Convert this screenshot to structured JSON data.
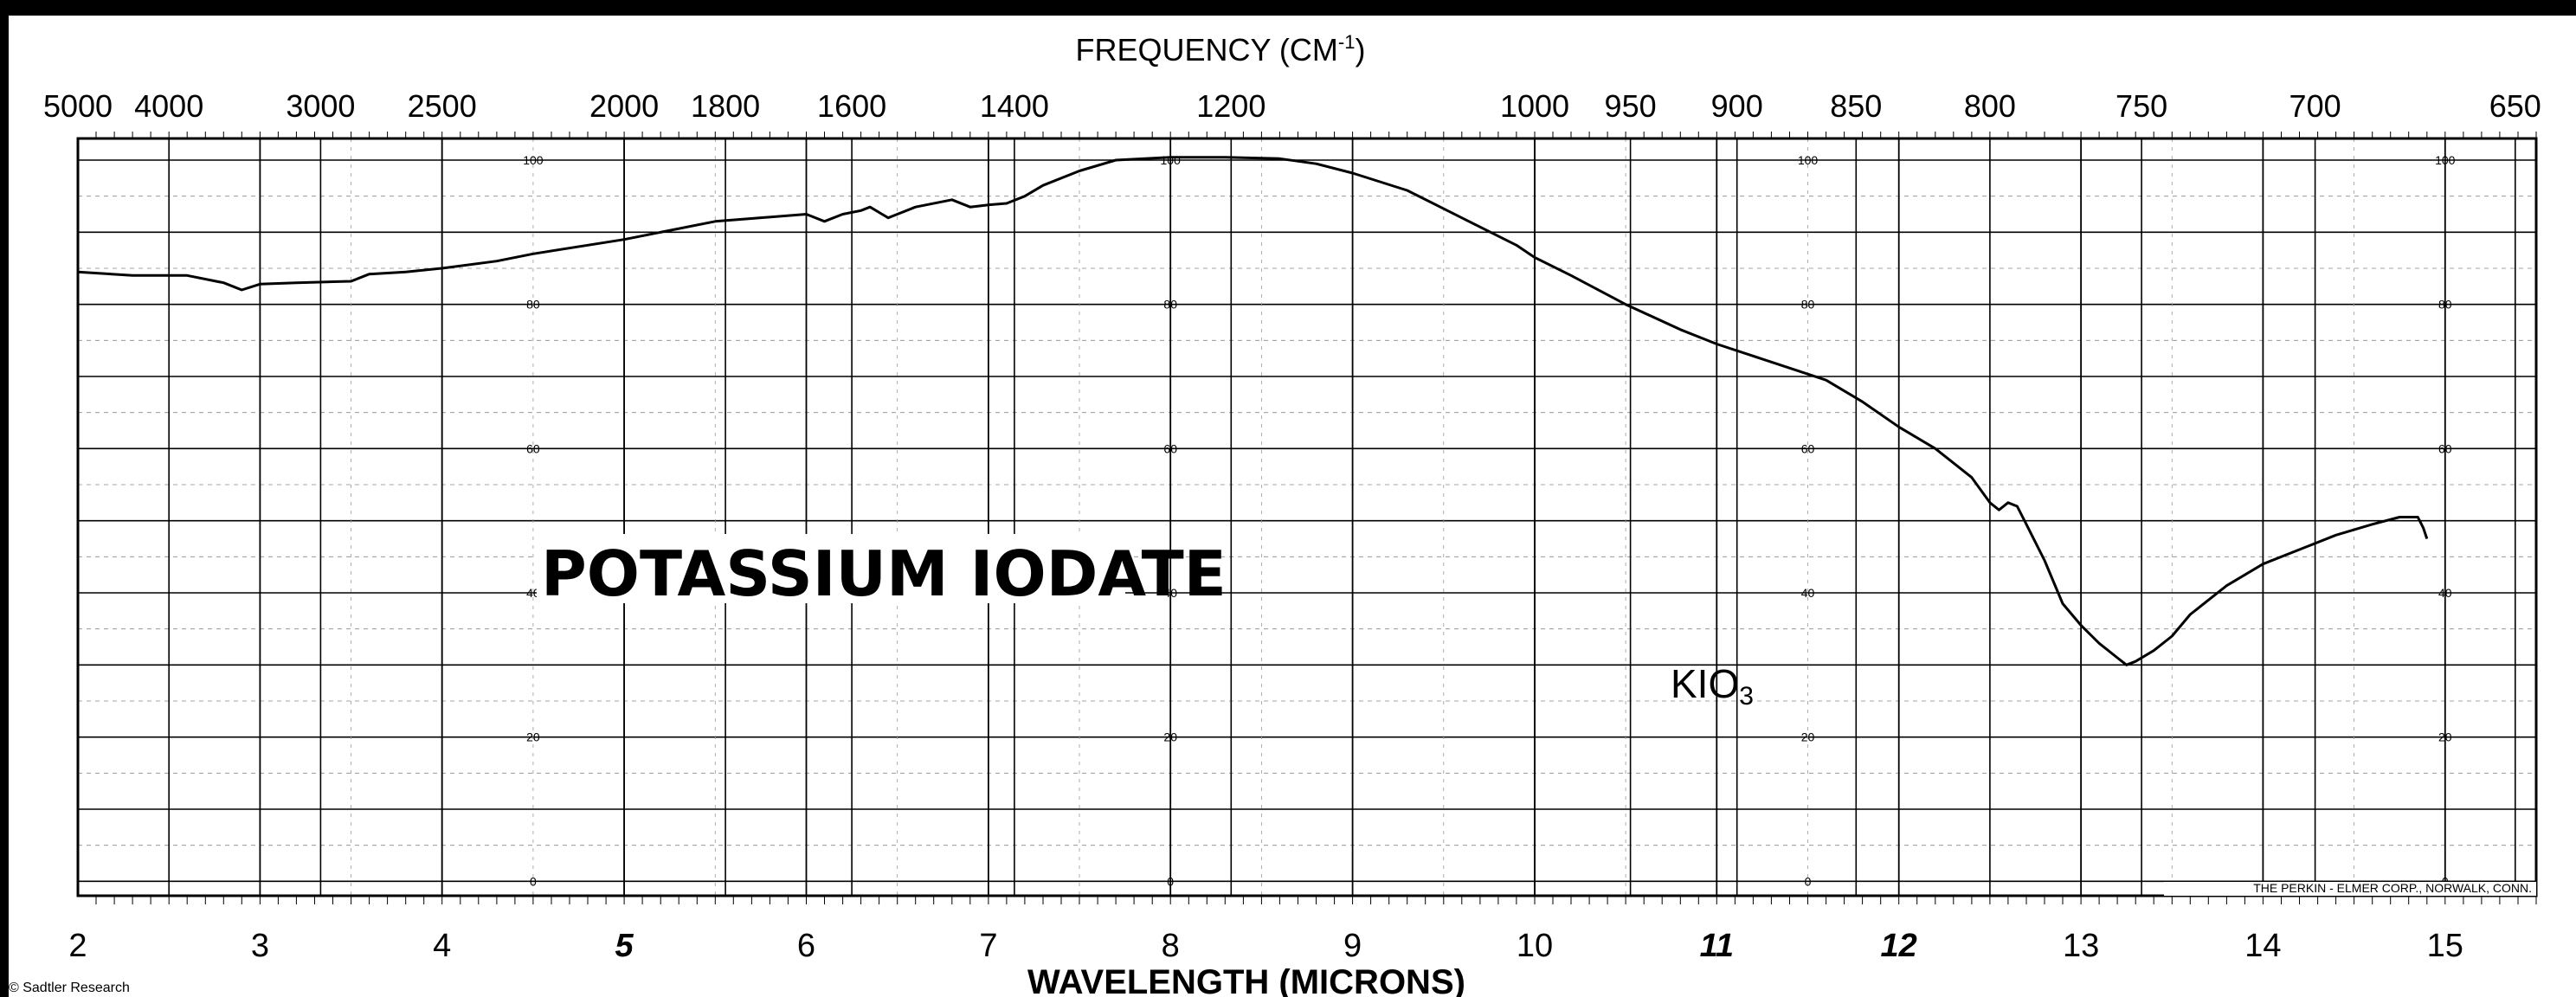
{
  "chart_data": {
    "type": "line",
    "title": "POTASSIUM IODATE",
    "formula": "KIO",
    "formula_subscript": "3",
    "xlabel": "WAVELENGTH (MICRONS)",
    "top_axis_label_main": "FREQUENCY (CM",
    "top_axis_label_exp": "-1",
    "top_axis_label_close": ")",
    "publisher": "THE PERKIN - ELMER CORP., NORWALK, CONN.",
    "copyright": "© Sadtler Research",
    "xlim": [
      2,
      15.5
    ],
    "ylim": [
      -2,
      103
    ],
    "grid": true,
    "x_ticks": [
      {
        "v": 2,
        "label": "2",
        "bold": false
      },
      {
        "v": 3,
        "label": "3",
        "bold": false
      },
      {
        "v": 4,
        "label": "4",
        "bold": false
      },
      {
        "v": 5,
        "label": "5",
        "bold": true
      },
      {
        "v": 6,
        "label": "6",
        "bold": false
      },
      {
        "v": 7,
        "label": "7",
        "bold": false
      },
      {
        "v": 8,
        "label": "8",
        "bold": false
      },
      {
        "v": 9,
        "label": "9",
        "bold": false
      },
      {
        "v": 10,
        "label": "10",
        "bold": false
      },
      {
        "v": 11,
        "label": "11",
        "bold": true
      },
      {
        "v": 12,
        "label": "12",
        "bold": true
      },
      {
        "v": 13,
        "label": "13",
        "bold": false
      },
      {
        "v": 14,
        "label": "14",
        "bold": false
      },
      {
        "v": 15,
        "label": "15",
        "bold": false
      }
    ],
    "top_ticks": [
      {
        "v": 2.0,
        "label": "5000"
      },
      {
        "v": 2.5,
        "label": "4000"
      },
      {
        "v": 3.333,
        "label": "3000"
      },
      {
        "v": 4.0,
        "label": "2500"
      },
      {
        "v": 5.0,
        "label": "2000"
      },
      {
        "v": 5.556,
        "label": "1800"
      },
      {
        "v": 6.25,
        "label": "1600"
      },
      {
        "v": 7.143,
        "label": "1400"
      },
      {
        "v": 8.333,
        "label": "1200"
      },
      {
        "v": 10.0,
        "label": "1000"
      },
      {
        "v": 10.526,
        "label": "950"
      },
      {
        "v": 11.111,
        "label": "900"
      },
      {
        "v": 11.765,
        "label": "850"
      },
      {
        "v": 12.5,
        "label": "800"
      },
      {
        "v": 13.333,
        "label": "750"
      },
      {
        "v": 14.286,
        "label": "700"
      },
      {
        "v": 15.385,
        "label": "650"
      }
    ],
    "inner_y_labels": [
      "0",
      "20",
      "40",
      "60",
      "80",
      "100"
    ],
    "inner_y_label_columns": [
      4.5,
      8.0,
      11.5,
      15.0
    ],
    "series": [
      {
        "x": [
          2.0,
          2.3,
          2.6,
          2.8,
          2.9,
          3.0,
          3.2,
          3.5,
          3.6,
          3.8,
          4.0,
          4.3,
          4.5,
          5.0,
          5.5,
          6.0,
          6.1,
          6.2,
          6.3,
          6.35,
          6.45,
          6.5,
          6.6,
          6.8,
          6.9,
          7.0,
          7.1,
          7.2,
          7.3,
          7.5,
          7.7,
          8.0,
          8.3,
          8.6,
          8.8,
          9.0,
          9.3,
          9.6,
          9.9,
          10.0,
          10.2,
          10.5,
          10.8,
          11.0,
          11.3,
          11.6,
          11.8,
          12.0,
          12.2,
          12.4,
          12.5,
          12.55,
          12.6,
          12.65,
          12.7,
          12.8,
          12.9,
          13.0,
          13.1,
          13.2,
          13.25,
          13.3,
          13.4,
          13.5,
          13.6,
          13.8,
          14.0,
          14.2,
          14.4,
          14.6,
          14.75,
          14.82,
          14.85,
          14.88,
          14.9
        ],
        "y": [
          84.5,
          84.0,
          84.0,
          83.0,
          82.0,
          82.8,
          83.0,
          83.2,
          84.2,
          84.5,
          85.0,
          86.0,
          87.0,
          89.0,
          91.5,
          92.5,
          91.5,
          92.5,
          93.0,
          93.5,
          92.0,
          92.5,
          93.5,
          94.5,
          93.5,
          93.8,
          94.0,
          95.0,
          96.5,
          98.5,
          100.0,
          100.4,
          100.4,
          100.2,
          99.5,
          98.2,
          95.8,
          92.0,
          88.2,
          86.5,
          84.0,
          80.0,
          76.5,
          74.5,
          72.0,
          69.5,
          66.5,
          63.0,
          60.0,
          56.0,
          52.5,
          51.5,
          52.5,
          52.0,
          49.5,
          44.5,
          38.5,
          35.5,
          33.0,
          31.0,
          30.0,
          30.5,
          32.0,
          34.0,
          37.0,
          41.0,
          44.0,
          46.0,
          48.0,
          49.5,
          50.5,
          50.5,
          50.5,
          49.0,
          47.5
        ]
      }
    ]
  }
}
